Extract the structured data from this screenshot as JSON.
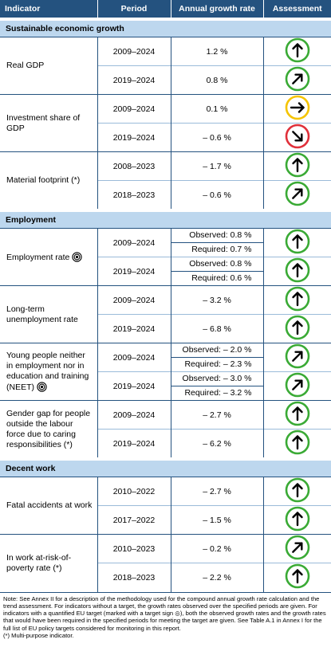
{
  "header": [
    "Indicator",
    "Period",
    "Annual growth rate",
    "Assessment"
  ],
  "sections": [
    {
      "title": "Sustainable economic growth",
      "indicators": [
        {
          "name": "Real GDP",
          "rows": [
            {
              "period": "2009–2024",
              "growth": "1.2 %"
            },
            {
              "period": "2019–2024",
              "growth": "0.8 %"
            }
          ]
        },
        {
          "name": "Investment share of GDP",
          "rows": [
            {
              "period": "2009–2024",
              "growth": "0.1 %"
            },
            {
              "period": "2019–2024",
              "growth": "– 0.6 %"
            }
          ]
        },
        {
          "name": "Material footprint (*)",
          "rows": [
            {
              "period": "2008–2023",
              "growth": "– 1.7 %"
            },
            {
              "period": "2018–2023",
              "growth": "– 0.6 %"
            }
          ]
        }
      ]
    },
    {
      "title": "Employment",
      "indicators": [
        {
          "name": "Employment rate",
          "rows": [
            {
              "period": "2009–2024",
              "observed": "Observed: 0.8 %",
              "required": "Required: 0.7 %"
            },
            {
              "period": "2019–2024",
              "observed": "Observed: 0.8 %",
              "required": "Required: 0.6 %"
            }
          ]
        },
        {
          "name": "Long-term unemployment rate",
          "rows": [
            {
              "period": "2009–2024",
              "growth": "– 3.2 %"
            },
            {
              "period": "2019–2024",
              "growth": "– 6.8 %"
            }
          ]
        },
        {
          "name": "Young people neither in employment nor in education and training (NEET)",
          "rows": [
            {
              "period": "2009–2024",
              "observed": "Observed: – 2.0 %",
              "required": "Required: – 2.3 %"
            },
            {
              "period": "2019–2024",
              "observed": "Observed: – 3.0 %",
              "required": "Required: – 3.2 %"
            }
          ]
        },
        {
          "name": "Gender gap for people outside the labour force due to caring responsibilities (*)",
          "rows": [
            {
              "period": "2009–2024",
              "growth": "– 2.7 %"
            },
            {
              "period": "2019–2024",
              "growth": "– 6.2 %"
            }
          ]
        }
      ]
    },
    {
      "title": "Decent work",
      "indicators": [
        {
          "name": "Fatal accidents at work",
          "rows": [
            {
              "period": "2010–2022",
              "growth": "– 2.7 %"
            },
            {
              "period": "2017–2022",
              "growth": "– 1.5 %"
            }
          ]
        },
        {
          "name": "In work at-risk-of-poverty rate (*)",
          "rows": [
            {
              "period": "2010–2023",
              "growth": "– 0.2 %"
            },
            {
              "period": "2018–2023",
              "growth": "– 2.2 %"
            }
          ]
        }
      ]
    }
  ],
  "note": "Note: See Annex II for a description of the methodology used for the compound annual growth rate calculation and the trend assessment. For indicators without a target, the growth rates observed over the specified periods are given. For indicators with a quantified EU target (marked with a target sign ◎), both the observed growth rates and the growth rates that would have been required in the specified periods for meeting the target are given. See Table A.1 in Annex I for the full list of EU policy targets considered for monitoring in this report.",
  "footnote": "(*) Multi-purpose indicator."
}
